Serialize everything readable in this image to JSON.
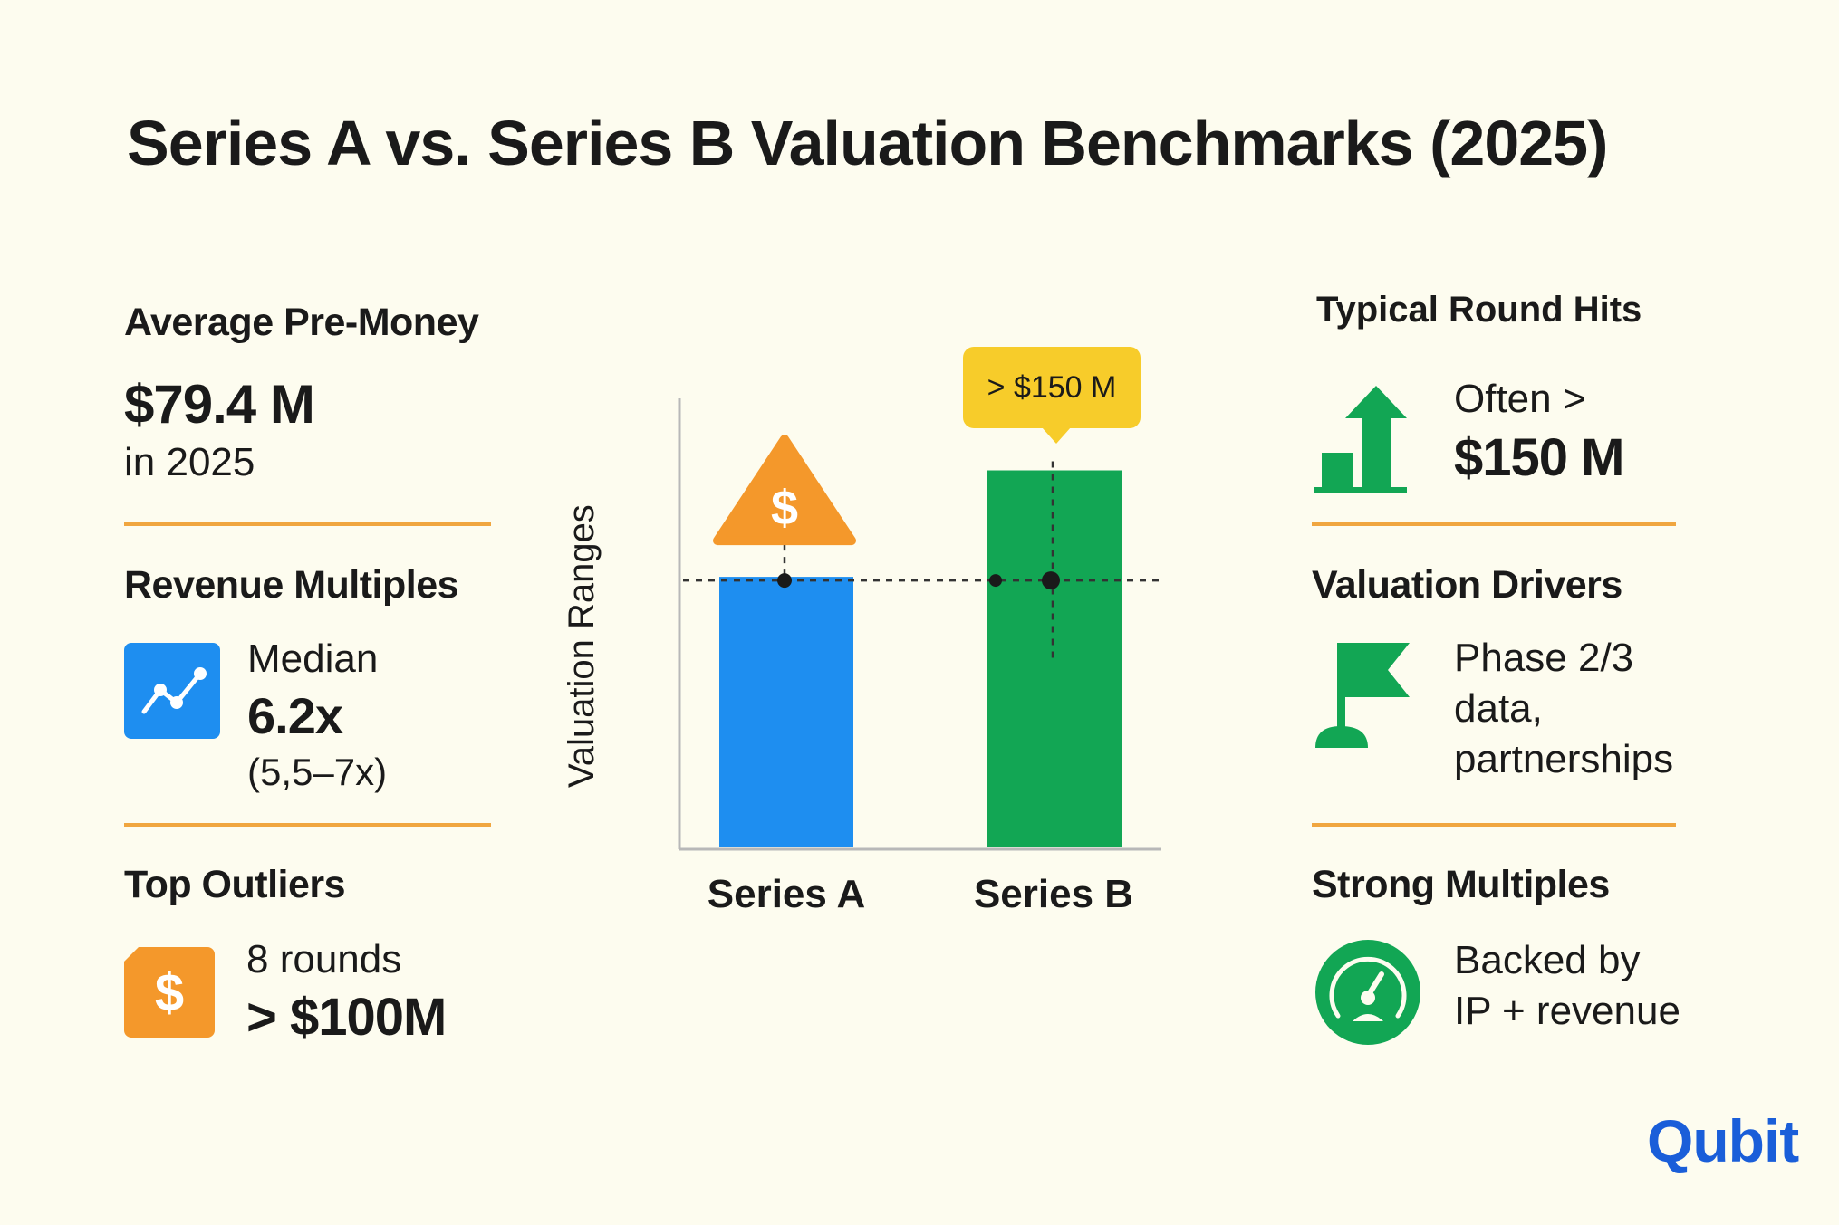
{
  "title": "Series A vs. Series B Valuation Benchmarks (2025)",
  "left": {
    "pre_money": {
      "heading": "Average Pre-Money",
      "value": "$79.4 M",
      "note": "in 2025"
    },
    "multiples": {
      "heading": "Revenue Multiples",
      "label": "Median",
      "value": "6.2x",
      "range": "(5,5–7x)",
      "icon": "line-chart-icon"
    },
    "outliers": {
      "heading": "Top Outliers",
      "label": "8 rounds",
      "value": "> $100M",
      "icon": "dollar-icon"
    }
  },
  "right": {
    "round_hits": {
      "heading": "Typical Round Hits",
      "line1": "Often >",
      "value": "$150 M",
      "icon": "growth-arrow-icon"
    },
    "drivers": {
      "heading": "Valuation Drivers",
      "line1": "Phase 2/3",
      "line2": "data,",
      "line3": "partnerships",
      "icon": "flag-icon"
    },
    "strong": {
      "heading": "Strong Multiples",
      "line1": "Backed by",
      "line2": "IP + revenue",
      "icon": "gauge-icon"
    }
  },
  "chart_data": {
    "type": "bar",
    "categories": [
      "Series A",
      "Series B"
    ],
    "ylabel": "Valuation Ranges",
    "values": [
      0.61,
      0.85
    ],
    "annotations": [
      {
        "category": "Series A",
        "label": "$",
        "marker": "warning-dollar"
      },
      {
        "category": "Series B",
        "label": "> $150 M"
      }
    ],
    "colors": [
      "#1e8ef0",
      "#12a654"
    ]
  },
  "logo": {
    "text_a": "Q",
    "text_b": "ubit"
  }
}
